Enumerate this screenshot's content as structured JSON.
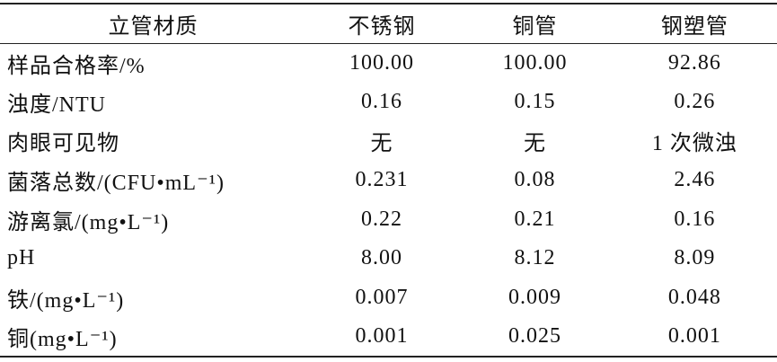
{
  "table": {
    "header": [
      "立管材质",
      "不锈钢",
      "铜管",
      "钢塑管"
    ],
    "rows": [
      [
        "样品合格率/%",
        "100.00",
        "100.00",
        "92.86"
      ],
      [
        "浊度/NTU",
        "0.16",
        "0.15",
        "0.26"
      ],
      [
        "肉眼可见物",
        "无",
        "无",
        "1 次微浊"
      ],
      [
        "菌落总数/(CFU•mL⁻¹)",
        "0.231",
        "0.08",
        "2.46"
      ],
      [
        "游离氯/(mg•L⁻¹)",
        "0.22",
        "0.21",
        "0.16"
      ],
      [
        "pH",
        "8.00",
        "8.12",
        "8.09"
      ],
      [
        "铁/(mg•L⁻¹)",
        "0.007",
        "0.009",
        "0.048"
      ],
      [
        "铜(mg•L⁻¹)",
        "0.001",
        "0.025",
        "0.001"
      ]
    ]
  }
}
